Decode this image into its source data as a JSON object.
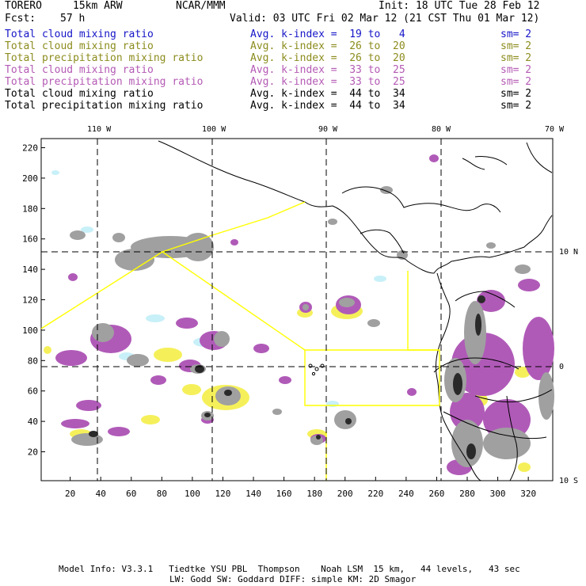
{
  "header": {
    "model": "TORERO",
    "resolution": "15km ARW",
    "org": "NCAR/MMM",
    "init": "Init: 18 UTC Tue 28 Feb 12",
    "fcst_label": "Fcst:",
    "fcst_hours": "57 h",
    "valid": "Valid: 03 UTC Fri 02 Mar 12 (21 CST Thu 01 Mar 12)"
  },
  "legend": [
    {
      "field": "Total cloud mixing ratio",
      "kindex": "Avg. k-index =  19 to   4",
      "sm": "sm= 2",
      "color": "#1515c8"
    },
    {
      "field": "Total cloud mixing ratio",
      "kindex": "Avg. k-index =  26 to  20",
      "sm": "sm= 2",
      "color": "#8c8c1e"
    },
    {
      "field": "Total precipitation mixing ratio",
      "kindex": "Avg. k-index =  26 to  20",
      "sm": "sm= 2",
      "color": "#8c8c1e"
    },
    {
      "field": "Total cloud mixing ratio",
      "kindex": "Avg. k-index =  33 to  25",
      "sm": "sm= 2",
      "color": "#b45ab4"
    },
    {
      "field": "Total precipitation mixing ratio",
      "kindex": "Avg. k-index =  33 to  25",
      "sm": "sm= 2",
      "color": "#b45ab4"
    },
    {
      "field": "Total cloud mixing ratio",
      "kindex": "Avg. k-index =  44 to  34",
      "sm": "sm= 2",
      "color": "#000000"
    },
    {
      "field": "Total precipitation mixing ratio",
      "kindex": "Avg. k-index =  44 to  34",
      "sm": "sm= 2",
      "color": "#000000"
    }
  ],
  "map": {
    "lon_labels": [
      "110 W",
      "100 W",
      "90 W",
      "80 W",
      "70 W"
    ],
    "lat_labels": [
      "10 N",
      "0",
      "10 S"
    ],
    "x_ticks": [
      "20",
      "40",
      "60",
      "80",
      "100",
      "120",
      "140",
      "160",
      "180",
      "200",
      "220",
      "240",
      "260",
      "280",
      "300",
      "320"
    ],
    "y_ticks": [
      "20",
      "40",
      "60",
      "80",
      "100",
      "120",
      "140",
      "160",
      "180",
      "200",
      "220"
    ],
    "grid_x_range": [
      1,
      336
    ],
    "grid_y_range": [
      1,
      226
    ],
    "colors": {
      "gray": "#a0a0a0",
      "dark": "#2a2a2a",
      "purple": "#b05ab8",
      "yellow": "#f5f05a",
      "cyan": "#c8f0f8",
      "outline": "#ffff00"
    }
  },
  "footer": {
    "line1": "Model Info: V3.3.1   Tiedtke YSU PBL  Thompson    Noah LSM  15 km,   44 levels,   43 sec",
    "line2": "LW: Godd SW: Goddard DIFF: simple KM: 2D Smagor"
  }
}
